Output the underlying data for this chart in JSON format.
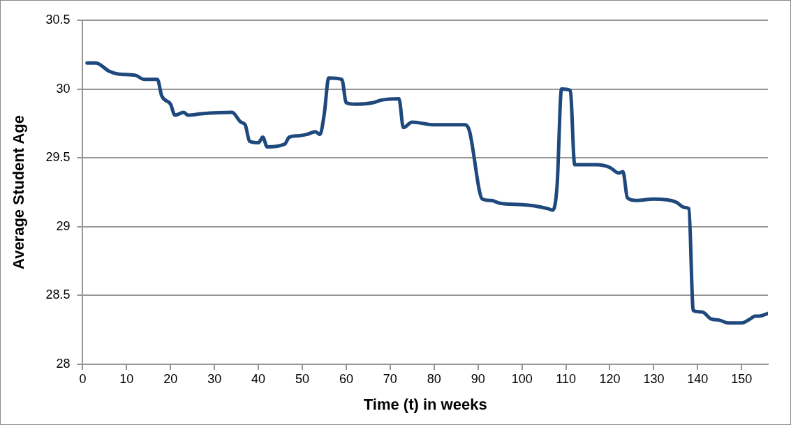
{
  "chart_data": {
    "type": "line",
    "xlabel": "Time (t) in weeks",
    "ylabel": "Average Student Age",
    "xlim": [
      0,
      156
    ],
    "xticks": [
      0,
      10,
      20,
      30,
      40,
      50,
      60,
      70,
      80,
      90,
      100,
      110,
      120,
      130,
      140,
      150
    ],
    "ylim": [
      28,
      30.5
    ],
    "yticks": [
      28,
      28.5,
      29,
      29.5,
      30,
      30.5
    ],
    "grid": "y",
    "legend": false,
    "marker": "none",
    "line_style": "solid",
    "series": [
      {
        "color": "#1f497d",
        "x": [
          1,
          3,
          6,
          8,
          12,
          14,
          17,
          18,
          20,
          21,
          23,
          24,
          27,
          34,
          36,
          37,
          38,
          40,
          41,
          42,
          46,
          47,
          49,
          51,
          53,
          54,
          55,
          56,
          59,
          60,
          62,
          66,
          68,
          72,
          73,
          75,
          80,
          87,
          88,
          91,
          93,
          95,
          100,
          103,
          106,
          107,
          108,
          109,
          111,
          112,
          117,
          120,
          122,
          123,
          124,
          126,
          130,
          135,
          137,
          138,
          139,
          141,
          143,
          145,
          147,
          150,
          152,
          153,
          154,
          156
        ],
        "values": [
          30.19,
          30.19,
          30.13,
          30.11,
          30.1,
          30.07,
          30.07,
          29.95,
          29.89,
          29.81,
          29.83,
          29.81,
          29.82,
          29.83,
          29.76,
          29.74,
          29.62,
          29.61,
          29.65,
          29.58,
          29.6,
          29.65,
          29.66,
          29.67,
          29.69,
          29.67,
          29.82,
          30.08,
          30.07,
          29.9,
          29.89,
          29.9,
          29.92,
          29.93,
          29.72,
          29.76,
          29.74,
          29.74,
          29.7,
          29.2,
          29.19,
          29.17,
          29.16,
          29.15,
          29.13,
          29.12,
          29.3,
          30,
          29.99,
          29.45,
          29.45,
          29.43,
          29.39,
          29.4,
          29.21,
          29.19,
          29.2,
          29.18,
          29.14,
          29.13,
          28.39,
          28.38,
          28.33,
          28.32,
          28.3,
          28.3,
          28.33,
          28.35,
          28.35,
          28.37
        ]
      }
    ]
  }
}
